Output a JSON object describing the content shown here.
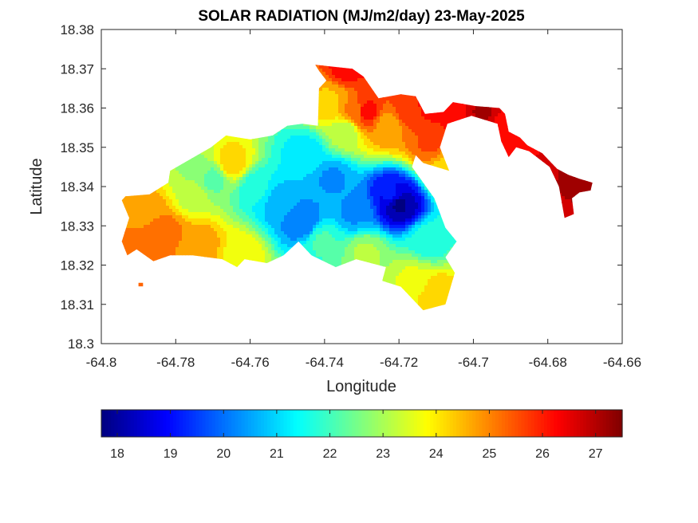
{
  "chart_data": {
    "type": "heatmap",
    "title": "SOLAR RADIATION (MJ/m2/day) 23-May-2025",
    "xlabel": "Longitude",
    "ylabel": "Latitude",
    "xlim": [
      -64.8,
      -64.66
    ],
    "ylim": [
      18.3,
      18.38
    ],
    "x_ticks": [
      -64.8,
      -64.78,
      -64.76,
      -64.74,
      -64.72,
      -64.7,
      -64.68,
      -64.66
    ],
    "x_tick_labels": [
      "-64.8",
      "-64.78",
      "-64.76",
      "-64.74",
      "-64.72",
      "-64.7",
      "-64.68",
      "-64.66"
    ],
    "y_ticks": [
      18.3,
      18.31,
      18.32,
      18.33,
      18.34,
      18.35,
      18.36,
      18.37,
      18.38
    ],
    "y_tick_labels": [
      "18.3",
      "18.31",
      "18.32",
      "18.33",
      "18.34",
      "18.35",
      "18.36",
      "18.37",
      "18.38"
    ],
    "colorbar": {
      "colormap": "jet",
      "range": [
        17.7,
        27.5
      ],
      "ticks": [
        18,
        19,
        20,
        21,
        22,
        23,
        24,
        25,
        26,
        27
      ],
      "tick_labels": [
        "18",
        "19",
        "20",
        "21",
        "22",
        "23",
        "24",
        "25",
        "26",
        "27"
      ]
    },
    "island_outline": [
      [
        -64.7935,
        18.3375
      ],
      [
        -64.787,
        18.338
      ],
      [
        -64.782,
        18.341
      ],
      [
        -64.7815,
        18.344
      ],
      [
        -64.7705,
        18.35
      ],
      [
        -64.7665,
        18.353
      ],
      [
        -64.76,
        18.352
      ],
      [
        -64.754,
        18.353
      ],
      [
        -64.75,
        18.3555
      ],
      [
        -64.746,
        18.356
      ],
      [
        -64.7418,
        18.3555
      ],
      [
        -64.7415,
        18.365
      ],
      [
        -64.7395,
        18.367
      ],
      [
        -64.7415,
        18.3695
      ],
      [
        -64.7425,
        18.371
      ],
      [
        -64.7325,
        18.37
      ],
      [
        -64.7295,
        18.368
      ],
      [
        -64.7255,
        18.3625
      ],
      [
        -64.7195,
        18.3635
      ],
      [
        -64.7155,
        18.363
      ],
      [
        -64.713,
        18.3585
      ],
      [
        -64.708,
        18.359
      ],
      [
        -64.7055,
        18.3615
      ],
      [
        -64.6995,
        18.3605
      ],
      [
        -64.693,
        18.36
      ],
      [
        -64.6915,
        18.3585
      ],
      [
        -64.6905,
        18.354
      ],
      [
        -64.6875,
        18.3525
      ],
      [
        -64.6855,
        18.3505
      ],
      [
        -64.6815,
        18.3485
      ],
      [
        -64.6795,
        18.3465
      ],
      [
        -64.6775,
        18.3445
      ],
      [
        -64.6745,
        18.343
      ],
      [
        -64.6715,
        18.342
      ],
      [
        -64.668,
        18.341
      ],
      [
        -64.6685,
        18.339
      ],
      [
        -64.6715,
        18.3385
      ],
      [
        -64.6735,
        18.337
      ],
      [
        -64.673,
        18.333
      ],
      [
        -64.6755,
        18.332
      ],
      [
        -64.677,
        18.34
      ],
      [
        -64.6795,
        18.345
      ],
      [
        -64.685,
        18.349
      ],
      [
        -64.6885,
        18.35
      ],
      [
        -64.6905,
        18.3475
      ],
      [
        -64.6925,
        18.3515
      ],
      [
        -64.6935,
        18.356
      ],
      [
        -64.7005,
        18.358
      ],
      [
        -64.707,
        18.356
      ],
      [
        -64.709,
        18.35
      ],
      [
        -64.7065,
        18.344
      ],
      [
        -64.7135,
        18.346
      ],
      [
        -64.7155,
        18.348
      ],
      [
        -64.7165,
        18.345
      ],
      [
        -64.7105,
        18.337
      ],
      [
        -64.7075,
        18.3295
      ],
      [
        -64.7045,
        18.326
      ],
      [
        -64.7075,
        18.322
      ],
      [
        -64.705,
        18.318
      ],
      [
        -64.7075,
        18.31
      ],
      [
        -64.7135,
        18.3085
      ],
      [
        -64.717,
        18.312
      ],
      [
        -64.7195,
        18.3145
      ],
      [
        -64.7245,
        18.316
      ],
      [
        -64.7235,
        18.3195
      ],
      [
        -64.7315,
        18.3215
      ],
      [
        -64.737,
        18.3195
      ],
      [
        -64.7435,
        18.3225
      ],
      [
        -64.747,
        18.326
      ],
      [
        -64.751,
        18.3225
      ],
      [
        -64.7555,
        18.3205
      ],
      [
        -64.7615,
        18.3215
      ],
      [
        -64.7635,
        18.3195
      ],
      [
        -64.7675,
        18.3215
      ],
      [
        -64.7755,
        18.3225
      ],
      [
        -64.7815,
        18.3225
      ],
      [
        -64.786,
        18.321
      ],
      [
        -64.7905,
        18.324
      ],
      [
        -64.793,
        18.3225
      ],
      [
        -64.7945,
        18.326
      ],
      [
        -64.7925,
        18.332
      ],
      [
        -64.7945,
        18.3365
      ]
    ],
    "islet": [
      [
        -64.79,
        18.3155
      ],
      [
        -64.7885,
        18.3155
      ],
      [
        -64.7885,
        18.3145
      ],
      [
        -64.79,
        18.3145
      ]
    ],
    "field_nodes": [
      {
        "lon": -64.72,
        "lat": 18.3355,
        "value": 17.9
      },
      {
        "lon": -64.722,
        "lat": 18.338,
        "value": 19.0
      },
      {
        "lon": -64.746,
        "lat": 18.331,
        "value": 20.0
      },
      {
        "lon": -64.752,
        "lat": 18.336,
        "value": 20.6
      },
      {
        "lon": -64.738,
        "lat": 18.342,
        "value": 20.4
      },
      {
        "lon": -64.732,
        "lat": 18.3335,
        "value": 20.4
      },
      {
        "lon": -64.758,
        "lat": 18.3395,
        "value": 21.5
      },
      {
        "lon": -64.712,
        "lat": 18.326,
        "value": 21.7
      },
      {
        "lon": -64.745,
        "lat": 18.3485,
        "value": 21.2
      },
      {
        "lon": -64.77,
        "lat": 18.342,
        "value": 22.3
      },
      {
        "lon": -64.7405,
        "lat": 18.326,
        "value": 22.0
      },
      {
        "lon": -64.776,
        "lat": 18.338,
        "value": 23.3
      },
      {
        "lon": -64.7755,
        "lat": 18.344,
        "value": 22.9
      },
      {
        "lon": -64.7345,
        "lat": 18.354,
        "value": 23.1
      },
      {
        "lon": -64.765,
        "lat": 18.346,
        "value": 24.2
      },
      {
        "lon": -64.729,
        "lat": 18.323,
        "value": 23.0
      },
      {
        "lon": -64.716,
        "lat": 18.3165,
        "value": 23.5
      },
      {
        "lon": -64.71,
        "lat": 18.313,
        "value": 24.3
      },
      {
        "lon": -64.7625,
        "lat": 18.3225,
        "value": 23.8
      },
      {
        "lon": -64.787,
        "lat": 18.334,
        "value": 24.6
      },
      {
        "lon": -64.784,
        "lat": 18.3295,
        "value": 25.3
      },
      {
        "lon": -64.79,
        "lat": 18.324,
        "value": 25.1
      },
      {
        "lon": -64.774,
        "lat": 18.325,
        "value": 24.9
      },
      {
        "lon": -64.7385,
        "lat": 18.362,
        "value": 24.4
      },
      {
        "lon": -64.7315,
        "lat": 18.359,
        "value": 25.1
      },
      {
        "lon": -64.729,
        "lat": 18.359,
        "value": 26.2
      },
      {
        "lon": -64.723,
        "lat": 18.3555,
        "value": 24.7
      },
      {
        "lon": -64.734,
        "lat": 18.37,
        "value": 26.1
      },
      {
        "lon": -64.7175,
        "lat": 18.359,
        "value": 25.7
      },
      {
        "lon": -64.7115,
        "lat": 18.361,
        "value": 26.2
      },
      {
        "lon": -64.7115,
        "lat": 18.351,
        "value": 25.5
      },
      {
        "lon": -64.707,
        "lat": 18.345,
        "value": 24.3
      },
      {
        "lon": -64.7045,
        "lat": 18.359,
        "value": 26.4
      },
      {
        "lon": -64.6975,
        "lat": 18.359,
        "value": 27.0
      },
      {
        "lon": -64.692,
        "lat": 18.3555,
        "value": 26.3
      },
      {
        "lon": -64.6865,
        "lat": 18.349,
        "value": 26.3
      },
      {
        "lon": -64.6795,
        "lat": 18.345,
        "value": 26.7
      },
      {
        "lon": -64.6745,
        "lat": 18.3435,
        "value": 27.1
      },
      {
        "lon": -64.672,
        "lat": 18.3385,
        "value": 27.3
      },
      {
        "lon": -64.6755,
        "lat": 18.334,
        "value": 26.6
      }
    ]
  }
}
